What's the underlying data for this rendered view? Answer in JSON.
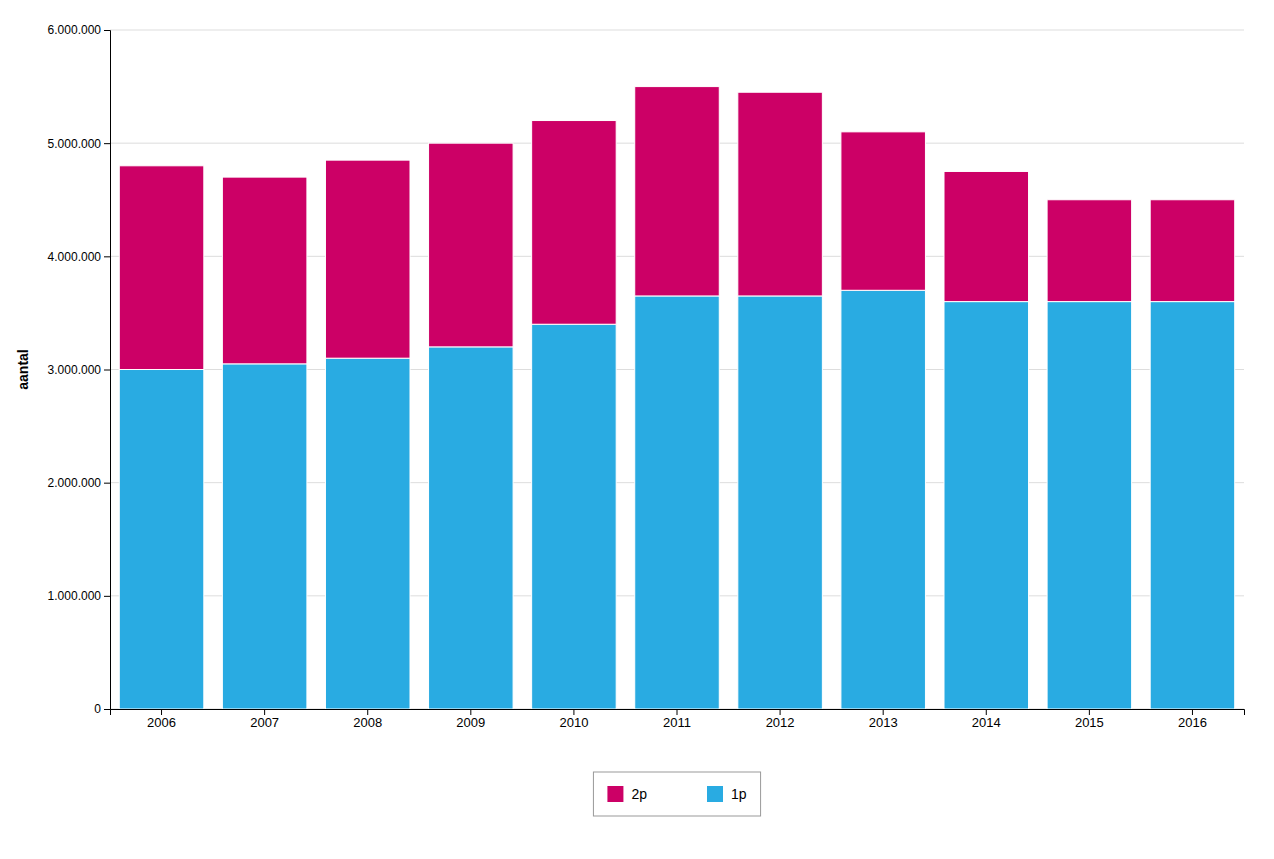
{
  "chart_data": {
    "type": "bar",
    "stacked": true,
    "y_label": "aantal",
    "categories": [
      "2006",
      "2007",
      "2008",
      "2009",
      "2010",
      "2011",
      "2012",
      "2013",
      "2014",
      "2015",
      "2016"
    ],
    "series": [
      {
        "name": "1p",
        "color": "#29ABE2",
        "values": [
          3000000,
          3050000,
          3100000,
          3200000,
          3400000,
          3650000,
          3650000,
          3700000,
          3600000,
          3600000,
          3600000
        ]
      },
      {
        "name": "2p",
        "color": "#CC0066",
        "values": [
          1800000,
          1650000,
          1750000,
          1800000,
          1800000,
          1850000,
          1800000,
          1400000,
          1150000,
          900000,
          900000
        ]
      }
    ],
    "ylim": [
      0,
      6000000
    ],
    "yticks": [
      0,
      {
        "value": 1000000,
        "label": "1.000.000"
      },
      {
        "value": 2000000,
        "label": "2.000.000"
      },
      {
        "value": 3000000,
        "label": "3.000.000"
      },
      {
        "value": 4000000,
        "label": "4.000.000"
      },
      {
        "value": 5000000,
        "label": "5.000.000"
      },
      {
        "value": 6000000,
        "label": "6.000.000"
      }
    ],
    "grid": true,
    "legend": "bottom"
  }
}
